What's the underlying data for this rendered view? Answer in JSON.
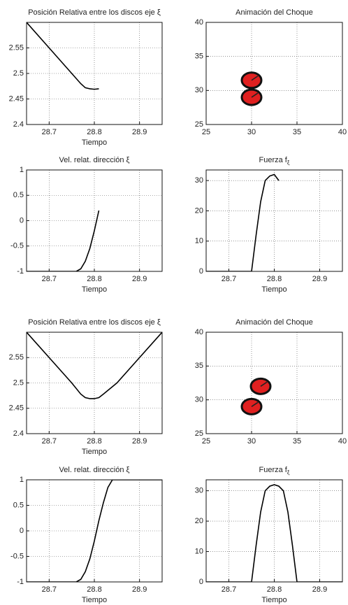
{
  "chart_data": [
    {
      "type": "line",
      "title": "Posición Relativa entre los discos eje ξ",
      "xlabel": "Tiempo",
      "x": [
        28.65,
        28.7,
        28.75,
        28.77,
        28.78,
        28.79,
        28.8,
        28.81
      ],
      "values": [
        2.6,
        2.55,
        2.5,
        2.48,
        2.472,
        2.47,
        2.469,
        2.47
      ],
      "color": "#000000",
      "xlim": [
        28.65,
        28.95
      ],
      "xticks": [
        28.7,
        28.8,
        28.9
      ],
      "ylim": [
        2.4,
        2.6
      ],
      "yticks": [
        2.4,
        2.45,
        2.5,
        2.55
      ],
      "grid": true
    },
    {
      "type": "scatter",
      "title": "Animación del Choque",
      "x": [
        30,
        30
      ],
      "values": [
        31.5,
        29
      ],
      "color": "#e02020",
      "xlim": [
        25,
        40
      ],
      "xticks": [
        25,
        30,
        35,
        40
      ],
      "ylim": [
        25,
        40
      ],
      "yticks": [
        25,
        30,
        35,
        40
      ],
      "grid": true
    },
    {
      "type": "line",
      "title": "Vel. relat. dirección ξ",
      "xlabel": "Tiempo",
      "x": [
        28.65,
        28.7,
        28.76,
        28.77,
        28.78,
        28.79,
        28.8,
        28.81
      ],
      "values": [
        -1,
        -1,
        -1,
        -0.95,
        -0.8,
        -0.55,
        -0.2,
        0.2
      ],
      "color": "#000000",
      "xlim": [
        28.65,
        28.95
      ],
      "xticks": [
        28.7,
        28.8,
        28.9
      ],
      "ylim": [
        -1,
        1
      ],
      "yticks": [
        -1,
        -0.5,
        0,
        0.5,
        1
      ],
      "grid": true
    },
    {
      "type": "line",
      "title": "Fuerza f",
      "title_subscript": "ξ",
      "xlabel": "Tiempo",
      "x": [
        28.65,
        28.75,
        28.76,
        28.77,
        28.78,
        28.79,
        28.8,
        28.81
      ],
      "values": [
        0,
        0,
        12,
        23,
        30,
        31.5,
        32,
        30
      ],
      "color": "#000000",
      "xlim": [
        28.65,
        28.95
      ],
      "xticks": [
        28.7,
        28.8,
        28.9
      ],
      "ylim": [
        0,
        33.5
      ],
      "yticks": [
        0,
        10,
        20,
        30
      ],
      "grid": true
    },
    {
      "type": "line",
      "title": "Posición Relativa entre los discos eje ξ",
      "xlabel": "Tiempo",
      "x": [
        28.65,
        28.7,
        28.75,
        28.77,
        28.78,
        28.79,
        28.8,
        28.81,
        28.82,
        28.85,
        28.9,
        28.95
      ],
      "values": [
        2.6,
        2.55,
        2.5,
        2.478,
        2.471,
        2.469,
        2.469,
        2.471,
        2.478,
        2.5,
        2.55,
        2.6
      ],
      "color": "#000000",
      "xlim": [
        28.65,
        28.95
      ],
      "xticks": [
        28.7,
        28.8,
        28.9
      ],
      "ylim": [
        2.4,
        2.6
      ],
      "yticks": [
        2.4,
        2.45,
        2.5,
        2.55
      ],
      "grid": true
    },
    {
      "type": "scatter",
      "title": "Animación del Choque",
      "x": [
        31,
        30
      ],
      "values": [
        32,
        29
      ],
      "color": "#e02020",
      "xlim": [
        25,
        40
      ],
      "xticks": [
        25,
        30,
        35,
        40
      ],
      "ylim": [
        25,
        40
      ],
      "yticks": [
        25,
        30,
        35,
        40
      ],
      "grid": true
    },
    {
      "type": "line",
      "title": "Vel. relat. dirección ξ",
      "xlabel": "Tiempo",
      "x": [
        28.65,
        28.76,
        28.77,
        28.78,
        28.79,
        28.8,
        28.81,
        28.82,
        28.83,
        28.84,
        28.95
      ],
      "values": [
        -1,
        -1,
        -0.95,
        -0.8,
        -0.55,
        -0.2,
        0.2,
        0.55,
        0.85,
        1,
        1
      ],
      "color": "#000000",
      "xlim": [
        28.65,
        28.95
      ],
      "xticks": [
        28.7,
        28.8,
        28.9
      ],
      "ylim": [
        -1,
        1
      ],
      "yticks": [
        -1,
        -0.5,
        0,
        0.5,
        1
      ],
      "grid": true
    },
    {
      "type": "line",
      "title": "Fuerza f",
      "title_subscript": "ξ",
      "xlabel": "Tiempo",
      "x": [
        28.65,
        28.75,
        28.76,
        28.77,
        28.78,
        28.79,
        28.8,
        28.81,
        28.82,
        28.83,
        28.84,
        28.85,
        28.95
      ],
      "values": [
        0,
        0,
        12,
        23,
        30,
        31.5,
        32,
        31.5,
        30,
        23,
        12,
        0,
        0
      ],
      "color": "#000000",
      "xlim": [
        28.65,
        28.95
      ],
      "xticks": [
        28.7,
        28.8,
        28.9
      ],
      "ylim": [
        0,
        33.6
      ],
      "yticks": [
        0,
        10,
        20,
        30
      ],
      "grid": true
    }
  ]
}
